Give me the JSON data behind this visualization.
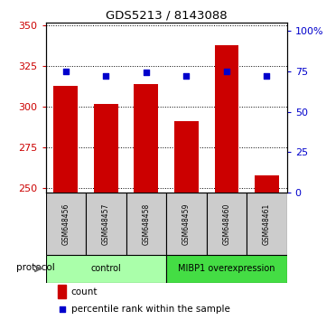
{
  "title": "GDS5213 / 8143088",
  "samples": [
    "GSM648456",
    "GSM648457",
    "GSM648458",
    "GSM648459",
    "GSM648460",
    "GSM648461"
  ],
  "counts": [
    313,
    302,
    314,
    291,
    338,
    258
  ],
  "percentiles": [
    75,
    72,
    74,
    72,
    75,
    72
  ],
  "ylim_left": [
    247,
    352
  ],
  "ylim_right": [
    0,
    105
  ],
  "yticks_left": [
    250,
    275,
    300,
    325,
    350
  ],
  "yticks_right": [
    0,
    25,
    50,
    75,
    100
  ],
  "ytick_labels_right": [
    "0",
    "25",
    "50",
    "75",
    "100%"
  ],
  "bar_color": "#cc0000",
  "square_color": "#0000cc",
  "bar_width": 0.6,
  "groups": [
    {
      "label": "control",
      "start": 0,
      "end": 3,
      "color": "#aaffaa"
    },
    {
      "label": "MIBP1 overexpression",
      "start": 3,
      "end": 6,
      "color": "#44dd44"
    }
  ],
  "protocol_label": "protocol",
  "legend_count": "count",
  "legend_percentile": "percentile rank within the sample",
  "left_axis_color": "#cc0000",
  "right_axis_color": "#0000cc",
  "sample_box_color": "#cccccc",
  "fig_bg": "#ffffff"
}
